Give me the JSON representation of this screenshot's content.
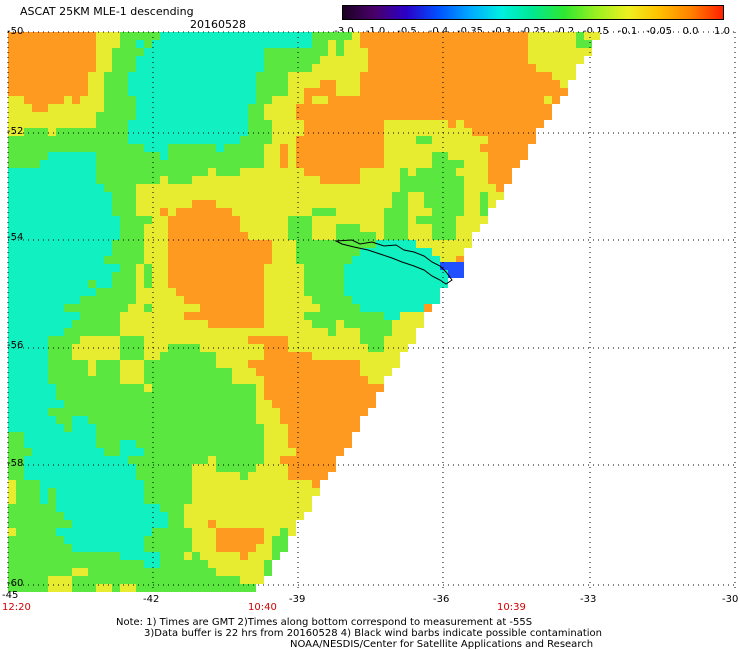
{
  "header": {
    "title": "ASCAT 25KM MLE-1 descending",
    "date": "20160528"
  },
  "colorbar": {
    "labels": [
      "-3.0",
      "-1.0",
      "-0.5",
      "-0.4",
      "-0.35",
      "-0.3",
      "-0.25",
      "-0.2",
      "-0.15",
      "-0.1",
      "-0.05",
      "0.0",
      "1.0"
    ],
    "colors": [
      "#1a0022",
      "#4a006a",
      "#2b00c8",
      "#0050ff",
      "#00a8ff",
      "#00f0e0",
      "#00e890",
      "#30e830",
      "#9af020",
      "#eef020",
      "#ffc000",
      "#ff8000",
      "#ff2000"
    ]
  },
  "map": {
    "lat_labels": [
      "-50",
      "-52",
      "-54",
      "-56",
      "-58",
      "-60"
    ],
    "lon_labels": [
      "-45",
      "-42",
      "-39",
      "-36",
      "-33",
      "-30"
    ],
    "time_labels": [
      "12:20",
      "10:40",
      "10:39"
    ],
    "lat_range": [
      -60,
      -50
    ],
    "lon_range": [
      -45,
      -30
    ],
    "grid": true,
    "swath_colors": {
      "orange": "#ff9a20",
      "yellow": "#e8ec30",
      "green": "#5ae840",
      "cyan": "#10f0c0",
      "blue": "#2050ff"
    }
  },
  "notes": {
    "line1": "Note: 1) Times are GMT 2)Times along bottom correspond to measurement at -55S",
    "line2": "3)Data buffer is 22 hrs from 20160528 4) Black wind barbs indicate possible contamination",
    "line3": "NOAA/NESDIS/Center for Satellite Applications and Research"
  }
}
